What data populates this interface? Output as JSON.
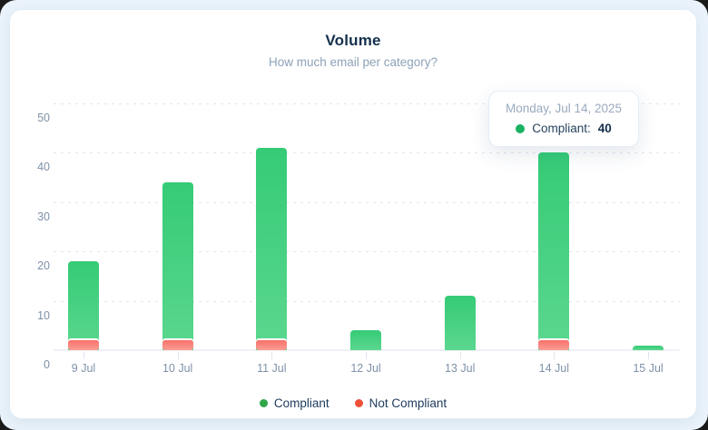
{
  "card": {
    "title": "Volume",
    "subtitle": "How much email per category?"
  },
  "tooltip": {
    "date": "Monday, Jul 14, 2025",
    "label": "Compliant:",
    "value": "40",
    "dot_color": "#1ab263"
  },
  "legend": {
    "items": [
      {
        "label": "Compliant",
        "color": "#2fa64a"
      },
      {
        "label": "Not Compliant",
        "color": "#f05038"
      }
    ]
  },
  "chart_data": {
    "type": "bar",
    "title": "Volume",
    "subtitle": "How much email per category?",
    "categories": [
      "9 Jul",
      "10 Jul",
      "11 Jul",
      "12 Jul",
      "13 Jul",
      "14 Jul",
      "15 Jul"
    ],
    "series": [
      {
        "name": "Compliant",
        "values": [
          18,
          34,
          41,
          4,
          11,
          40,
          1
        ],
        "color_top": "#35cb76",
        "color_bottom": "#5bd78f"
      },
      {
        "name": "Not Compliant",
        "values": [
          2,
          2,
          2,
          0,
          0,
          2,
          0
        ],
        "color_top": "#f8716a",
        "color_bottom": "#fb9d95"
      }
    ],
    "mode": "overlay-at-base",
    "ylim": [
      0,
      55
    ],
    "yticks": [
      0,
      10,
      20,
      30,
      40,
      50
    ],
    "xlabel": "",
    "ylabel": "",
    "grid": "dotted-horizontal",
    "legend_position": "bottom",
    "hovered_category": "14 Jul",
    "hover_tooltip": {
      "date": "Monday, Jul 14, 2025",
      "series": "Compliant",
      "value": 40
    }
  }
}
